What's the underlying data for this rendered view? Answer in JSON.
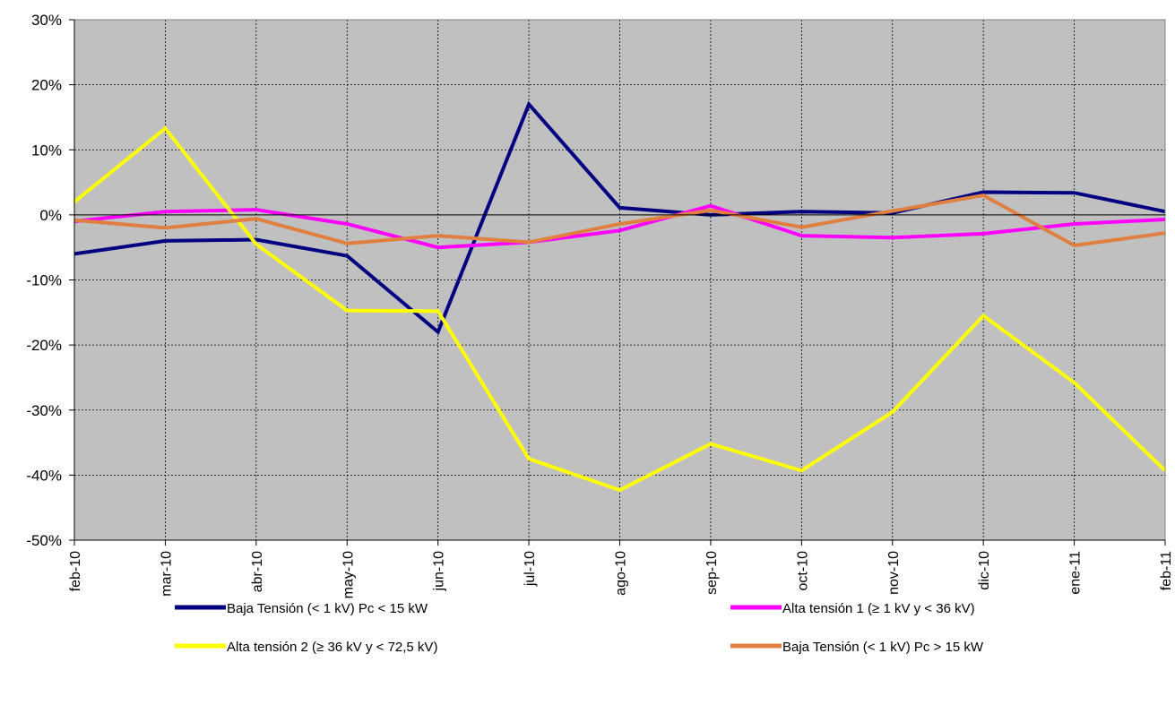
{
  "chart_data": {
    "type": "line",
    "title": "",
    "xlabel": "",
    "ylabel": "",
    "categories": [
      "feb-10",
      "mar-10",
      "abr-10",
      "may-10",
      "jun-10",
      "jul-10",
      "ago-10",
      "sep-10",
      "oct-10",
      "nov-10",
      "dic-10",
      "ene-11",
      "feb-11"
    ],
    "y_ticks": [
      "30%",
      "20%",
      "10%",
      "0%",
      "-10%",
      "-20%",
      "-30%",
      "-40%",
      "-50%"
    ],
    "ylim": [
      -50,
      30
    ],
    "y_unit": "%",
    "grid": true,
    "plot_background": "#c0c0c0",
    "legend_position": "bottom",
    "series": [
      {
        "name": "Baja Tensión (< 1 kV) Pc < 15 kW",
        "color": "#000080",
        "values": [
          -6.0,
          -4.0,
          -3.8,
          -6.3,
          -18.0,
          17.0,
          1.1,
          0.0,
          0.5,
          0.3,
          3.5,
          3.4,
          0.5
        ]
      },
      {
        "name": "Alta tensión 1 (≥  1 kV y  < 36 kV)",
        "color": "#ff00ff",
        "values": [
          -1.0,
          0.5,
          0.8,
          -1.4,
          -5.0,
          -4.2,
          -2.4,
          1.4,
          -3.2,
          -3.5,
          -2.9,
          -1.4,
          -0.7
        ]
      },
      {
        "name": "Alta tensión 2 (≥  36 kV y < 72,5 kV)",
        "color": "#ffff00",
        "values": [
          2.0,
          13.3,
          -4.5,
          -14.7,
          -14.8,
          -37.5,
          -42.3,
          -35.2,
          -39.3,
          -30.3,
          -15.5,
          -25.8,
          -39.3
        ]
      },
      {
        "name": "Baja Tensión (< 1 kV) Pc > 15 kW",
        "color": "#e08040",
        "values": [
          -0.8,
          -2.0,
          -0.6,
          -4.4,
          -3.2,
          -4.2,
          -1.4,
          0.7,
          -1.9,
          0.6,
          3.0,
          -4.7,
          -2.8
        ]
      }
    ]
  }
}
